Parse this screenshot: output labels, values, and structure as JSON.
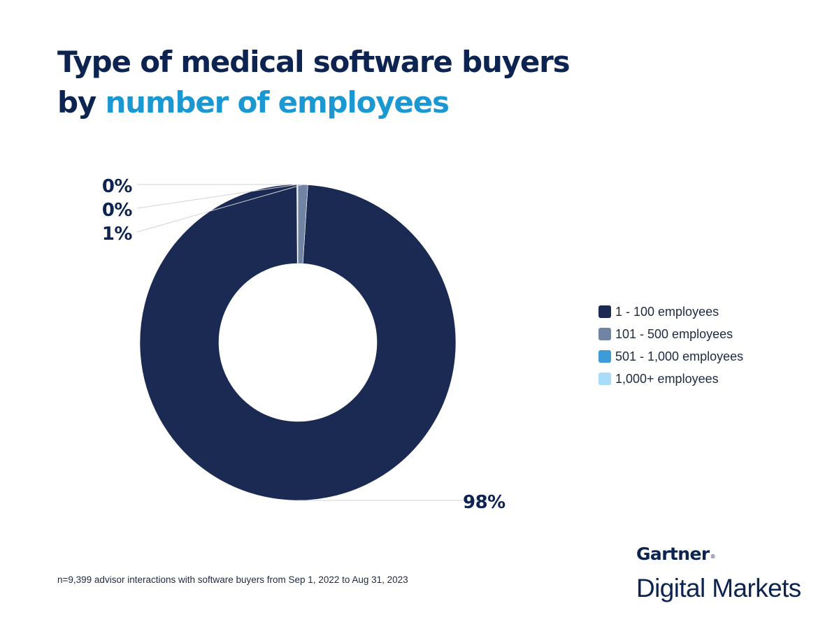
{
  "title": {
    "line1": "Type of medical software buyers",
    "line2_prefix": "by",
    "line2_accent": "number of employees"
  },
  "chart_data": {
    "type": "pie",
    "categories": [
      "1 - 100 employees",
      "101 - 500 employees",
      "501 - 1,000 employees",
      "1,000+ employees"
    ],
    "values": [
      98,
      1,
      0,
      0
    ],
    "value_labels": [
      "98%",
      "1%",
      "0%",
      "0%"
    ],
    "colors": [
      "#1a2a52",
      "#7284a3",
      "#3d9bd5",
      "#a9dcf7"
    ],
    "donut": true,
    "legend_position": "right"
  },
  "footnote": "n=9,399 advisor interactions with software buyers from Sep 1, 2022 to Aug 31, 2023",
  "logo": {
    "brand": "Gartner",
    "mark": "®",
    "product": "Digital Markets"
  }
}
